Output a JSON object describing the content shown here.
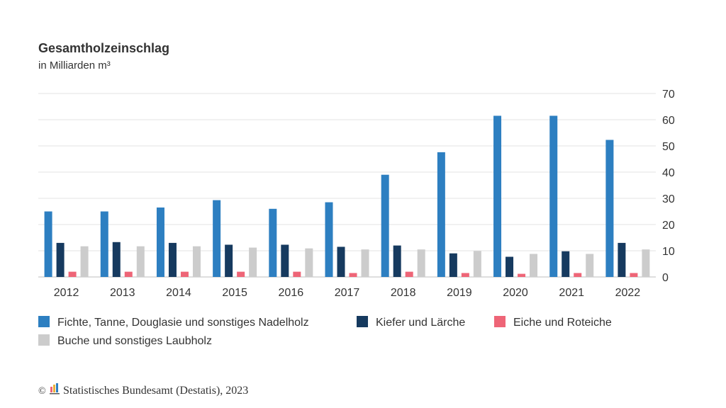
{
  "chart_data": {
    "type": "bar",
    "title": "Gesamtholzeinschlag",
    "subtitle": "in Milliarden m³",
    "categories": [
      "2012",
      "2013",
      "2014",
      "2015",
      "2016",
      "2017",
      "2018",
      "2019",
      "2020",
      "2021",
      "2022"
    ],
    "ylim": [
      0,
      70
    ],
    "yticks": [
      0,
      10,
      20,
      30,
      40,
      50,
      60,
      70
    ],
    "grid": true,
    "y_axis_side": "right",
    "legend_position": "bottom",
    "series": [
      {
        "name": "Fichte, Tanne, Douglasie und sonstiges Nadelholz",
        "color": "#2d7fc1",
        "values": [
          25.0,
          25.0,
          26.5,
          29.3,
          26.0,
          28.5,
          39.0,
          47.6,
          61.5,
          61.5,
          52.3
        ]
      },
      {
        "name": "Kiefer und Lärche",
        "color": "#163a5f",
        "values": [
          13.0,
          13.3,
          13.0,
          12.3,
          12.3,
          11.5,
          12.0,
          9.0,
          7.7,
          9.8,
          13.0
        ]
      },
      {
        "name": "Eiche und Roteiche",
        "color": "#ee6577",
        "values": [
          2.0,
          2.0,
          2.0,
          2.0,
          2.0,
          1.5,
          2.0,
          1.5,
          1.2,
          1.5,
          1.5
        ]
      },
      {
        "name": "Buche und sonstiges Laubholz",
        "color": "#cccccc",
        "values": [
          11.7,
          11.7,
          11.7,
          11.2,
          10.9,
          10.5,
          10.5,
          9.9,
          8.8,
          8.8,
          10.5
        ]
      }
    ]
  },
  "source": {
    "copyright_symbol": "©",
    "text": "Statistisches Bundesamt (Destatis), 2023",
    "logo_colors": [
      "#ee6577",
      "#e8b23a",
      "#2d7fc1"
    ]
  }
}
